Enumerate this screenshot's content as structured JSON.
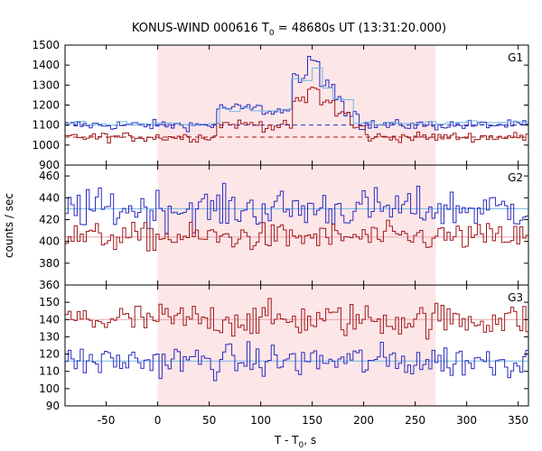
{
  "chart_data": {
    "type": "line",
    "title": {
      "main": "KONUS-WIND 000616 T",
      "sub": "0",
      "rest": " = 48680s UT (13:31:20.000)"
    },
    "xlabel": {
      "main": "T - T",
      "sub": "0",
      "rest": ", s"
    },
    "ylabel": "counts / sec",
    "xlim": [
      -90,
      360
    ],
    "xticks": [
      -50,
      0,
      50,
      100,
      150,
      200,
      250,
      300,
      350
    ],
    "shaded_interval": [
      0,
      270
    ],
    "colors": {
      "shade": "#fde6e8",
      "blue": "#2b2bbf",
      "light_blue": "#6fb6e6",
      "red": "#a01818",
      "axis": "#000000"
    },
    "panels": [
      {
        "label": "G1",
        "ylim": [
          900,
          1500
        ],
        "yticks": [
          900,
          1000,
          1100,
          1200,
          1300,
          1400,
          1500
        ],
        "background_blue": 1100,
        "background_red": 1040,
        "series": [
          {
            "name": "blue",
            "baseline": 1100,
            "noise": 18,
            "bursts": [
              {
                "start": 55,
                "end": 100,
                "value": 1185
              },
              {
                "start": 100,
                "end": 130,
                "value": 1170
              },
              {
                "start": 130,
                "end": 145,
                "value": 1340
              },
              {
                "start": 145,
                "end": 155,
                "value": 1415
              },
              {
                "start": 155,
                "end": 170,
                "value": 1300
              },
              {
                "start": 170,
                "end": 180,
                "value": 1245
              },
              {
                "start": 180,
                "end": 195,
                "value": 1160
              }
            ]
          },
          {
            "name": "red",
            "baseline": 1040,
            "noise": 17,
            "bursts": [
              {
                "start": 55,
                "end": 100,
                "value": 1105
              },
              {
                "start": 100,
                "end": 130,
                "value": 1095
              },
              {
                "start": 130,
                "end": 145,
                "value": 1220
              },
              {
                "start": 145,
                "end": 155,
                "value": 1280
              },
              {
                "start": 155,
                "end": 170,
                "value": 1215
              },
              {
                "start": 170,
                "end": 185,
                "value": 1160
              },
              {
                "start": 185,
                "end": 200,
                "value": 1090
              }
            ]
          },
          {
            "name": "light_blue",
            "baseline": 1110,
            "noise": 8,
            "bursts": [
              {
                "start": 55,
                "end": 100,
                "value": 1175
              },
              {
                "start": 100,
                "end": 130,
                "value": 1165
              },
              {
                "start": 130,
                "end": 145,
                "value": 1330
              },
              {
                "start": 145,
                "end": 155,
                "value": 1390
              },
              {
                "start": 155,
                "end": 170,
                "value": 1285
              },
              {
                "start": 170,
                "end": 185,
                "value": 1235
              }
            ]
          }
        ]
      },
      {
        "label": "G2",
        "ylim": [
          360,
          470
        ],
        "yticks": [
          360,
          380,
          400,
          420,
          440,
          460
        ],
        "background_blue": 430,
        "background_red": 404,
        "series": [
          {
            "name": "blue",
            "baseline": 430,
            "noise": 13,
            "bursts": []
          },
          {
            "name": "red",
            "baseline": 404,
            "noise": 9,
            "bursts": []
          }
        ]
      },
      {
        "label": "G3",
        "ylim": [
          90,
          160
        ],
        "yticks": [
          90,
          100,
          110,
          120,
          130,
          140,
          150,
          160
        ],
        "background_blue": 116,
        "background_red": 140,
        "series": [
          {
            "name": "red",
            "baseline": 140,
            "noise": 7,
            "bursts": []
          },
          {
            "name": "blue",
            "baseline": 116,
            "noise": 7,
            "bursts": []
          }
        ]
      }
    ]
  }
}
